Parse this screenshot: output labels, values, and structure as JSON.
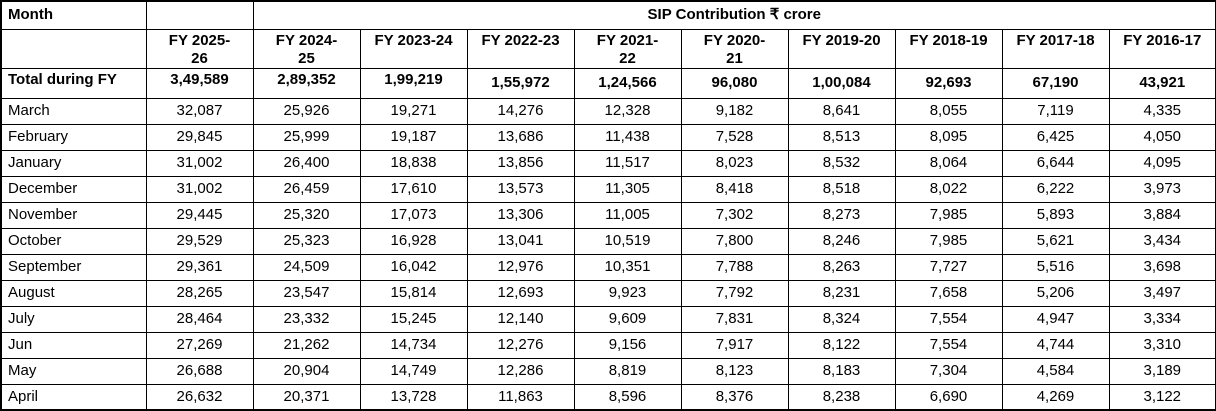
{
  "table": {
    "corner_label": "Month",
    "group_header": "SIP Contribution ₹ crore",
    "columns": [
      "FY 2025-\n26",
      "FY 2024-\n25",
      "FY 2023-24",
      "FY 2022-23",
      "FY 2021-\n22",
      "FY 2020-\n21",
      "FY 2019-20",
      "FY 2018-19",
      "FY 2017-18",
      "FY 2016-17"
    ],
    "total_row": {
      "label": "Total during FY",
      "values": [
        "3,49,589",
        "2,89,352",
        "1,99,219",
        "1,55,972",
        "1,24,566",
        "96,080",
        "1,00,084",
        "92,693",
        "67,190",
        "43,921"
      ]
    },
    "rows": [
      {
        "label": "March",
        "values": [
          "32,087",
          "25,926",
          "19,271",
          "14,276",
          "12,328",
          "9,182",
          "8,641",
          "8,055",
          "7,119",
          "4,335"
        ]
      },
      {
        "label": "February",
        "values": [
          "29,845",
          "25,999",
          "19,187",
          "13,686",
          "11,438",
          "7,528",
          "8,513",
          "8,095",
          "6,425",
          "4,050"
        ]
      },
      {
        "label": "January",
        "values": [
          "31,002",
          "26,400",
          "18,838",
          "13,856",
          "11,517",
          "8,023",
          "8,532",
          "8,064",
          "6,644",
          "4,095"
        ]
      },
      {
        "label": "December",
        "values": [
          "31,002",
          "26,459",
          "17,610",
          "13,573",
          "11,305",
          "8,418",
          "8,518",
          "8,022",
          "6,222",
          "3,973"
        ]
      },
      {
        "label": "November",
        "values": [
          "29,445",
          "25,320",
          "17,073",
          "13,306",
          "11,005",
          "7,302",
          "8,273",
          "7,985",
          "5,893",
          "3,884"
        ]
      },
      {
        "label": "October",
        "values": [
          "29,529",
          "25,323",
          "16,928",
          "13,041",
          "10,519",
          "7,800",
          "8,246",
          "7,985",
          "5,621",
          "3,434"
        ]
      },
      {
        "label": "September",
        "values": [
          "29,361",
          "24,509",
          "16,042",
          "12,976",
          "10,351",
          "7,788",
          "8,263",
          "7,727",
          "5,516",
          "3,698"
        ]
      },
      {
        "label": "August",
        "values": [
          "28,265",
          "23,547",
          "15,814",
          "12,693",
          "9,923",
          "7,792",
          "8,231",
          "7,658",
          "5,206",
          "3,497"
        ]
      },
      {
        "label": "July",
        "values": [
          "28,464",
          "23,332",
          "15,245",
          "12,140",
          "9,609",
          "7,831",
          "8,324",
          "7,554",
          "4,947",
          "3,334"
        ]
      },
      {
        "label": "Jun",
        "values": [
          "27,269",
          "21,262",
          "14,734",
          "12,276",
          "9,156",
          "7,917",
          "8,122",
          "7,554",
          "4,744",
          "3,310"
        ]
      },
      {
        "label": "May",
        "values": [
          "26,688",
          "20,904",
          "14,749",
          "12,286",
          "8,819",
          "8,123",
          "8,183",
          "7,304",
          "4,584",
          "3,189"
        ]
      },
      {
        "label": "April",
        "values": [
          "26,632",
          "20,371",
          "13,728",
          "11,863",
          "8,596",
          "8,376",
          "8,238",
          "6,690",
          "4,269",
          "3,122"
        ]
      }
    ]
  },
  "colors": {
    "text": "#000000",
    "border": "#000000",
    "background": "#ffffff"
  }
}
